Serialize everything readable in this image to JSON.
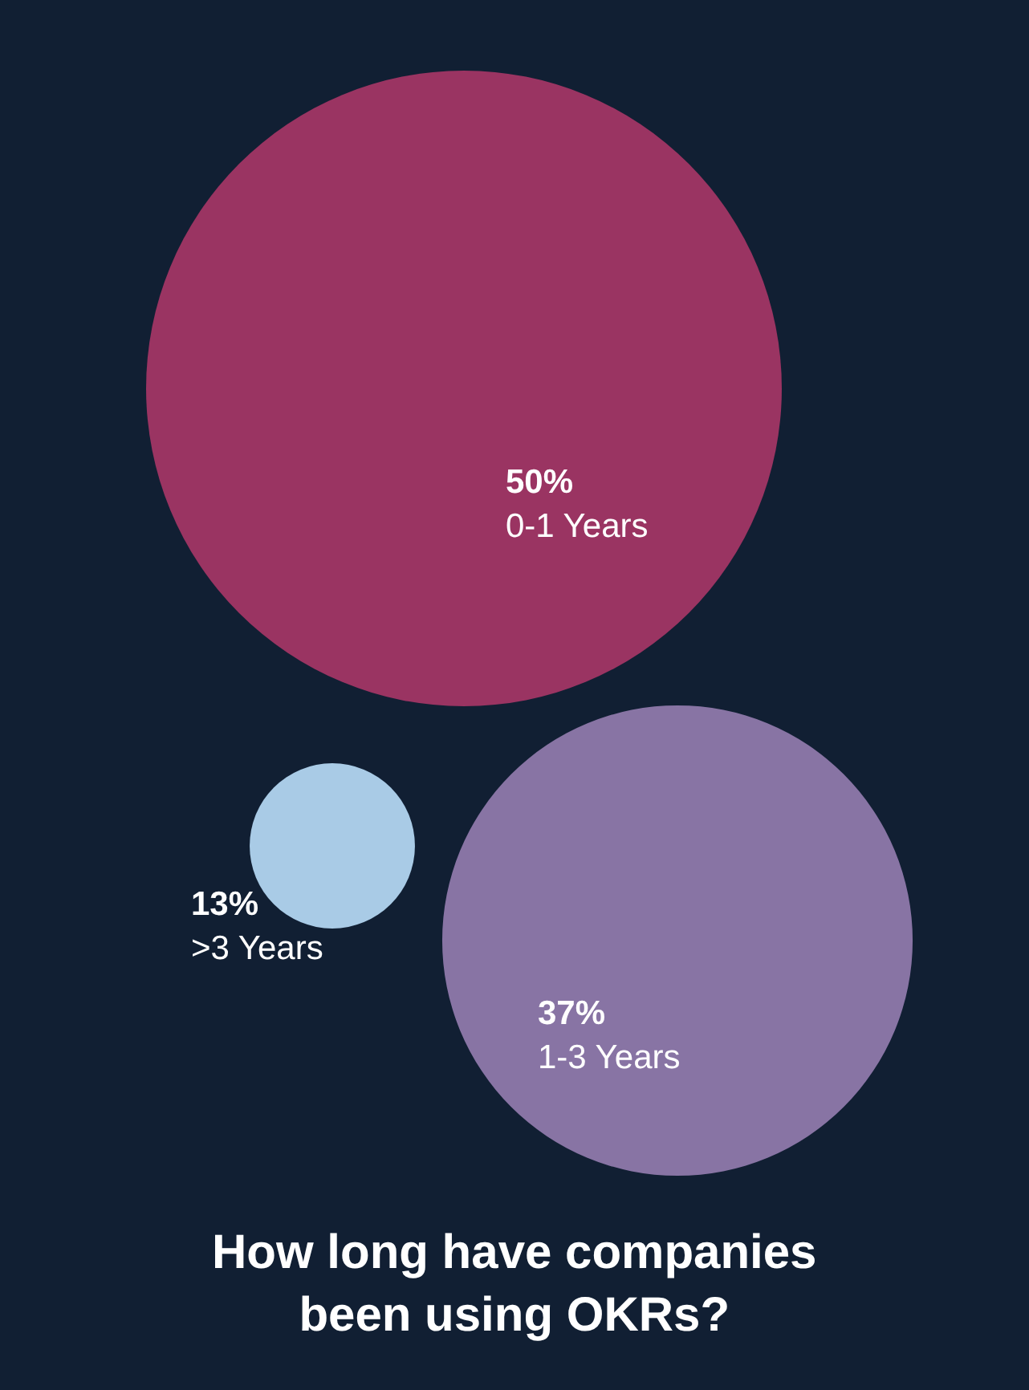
{
  "chart_data": {
    "type": "other",
    "title": "How long have companies been using OKRs?",
    "categories": [
      "0-1 Years",
      "1-3 Years",
      ">3 Years"
    ],
    "values": [
      50,
      37,
      13
    ],
    "value_labels": [
      "50%",
      "37%",
      "13%"
    ],
    "colors": [
      "#9a3462",
      "#8874a4",
      "#a9cbe6"
    ]
  }
}
